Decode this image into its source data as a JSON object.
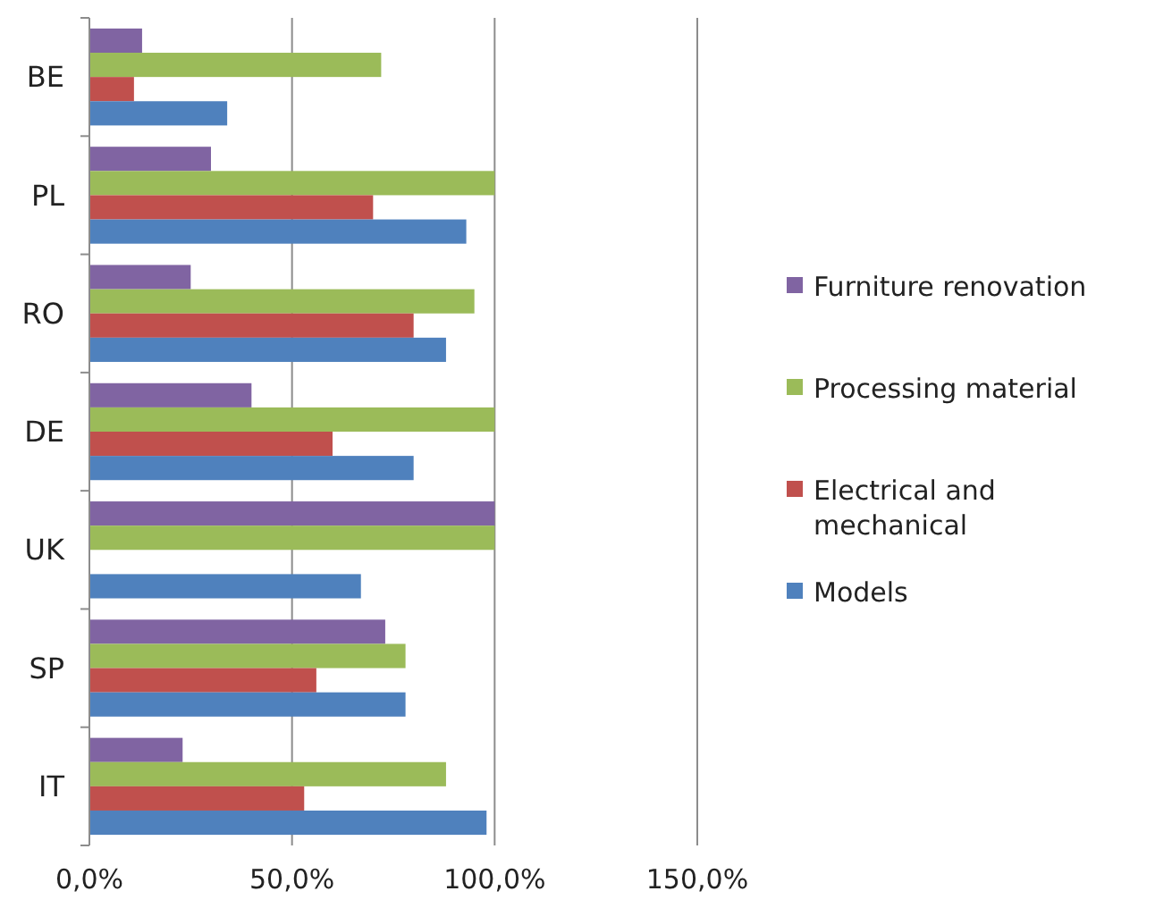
{
  "chart_data": {
    "type": "bar",
    "orientation": "horizontal",
    "categories": [
      "BE",
      "PL",
      "RO",
      "DE",
      "UK",
      "SP",
      "IT"
    ],
    "series": [
      {
        "name": "Furniture renovation",
        "color": "#8064a2",
        "values": [
          13,
          30,
          25,
          40,
          100,
          73,
          23
        ]
      },
      {
        "name": "Processing material",
        "color": "#9bbb59",
        "values": [
          72,
          100,
          95,
          100,
          100,
          78,
          88
        ]
      },
      {
        "name": "Electrical and mechanical",
        "color": "#c0504d",
        "values": [
          11,
          70,
          80,
          60,
          0,
          56,
          53
        ]
      },
      {
        "name": "Models",
        "color": "#4f81bd",
        "values": [
          34,
          93,
          88,
          80,
          67,
          78,
          98
        ]
      }
    ],
    "xlim": [
      0,
      150
    ],
    "xticks": [
      {
        "value": 0,
        "label": "0,0%"
      },
      {
        "value": 50,
        "label": "50,0%"
      },
      {
        "value": 100,
        "label": "100,0%"
      },
      {
        "value": 150,
        "label": "150,0%"
      }
    ],
    "grid": "x",
    "legend": "right"
  }
}
